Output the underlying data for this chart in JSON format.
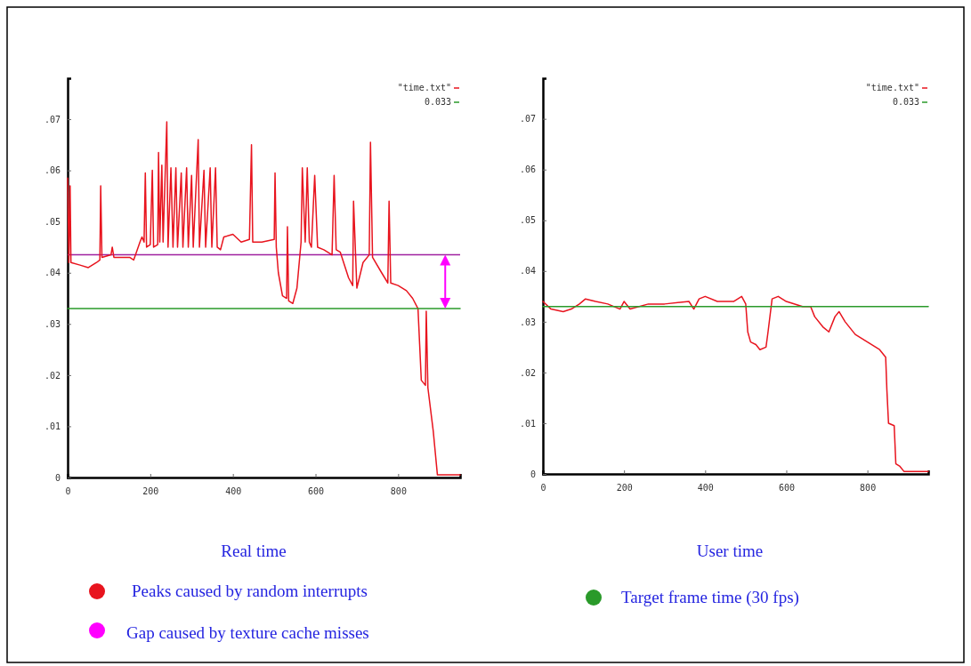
{
  "chart_data": [
    {
      "type": "line",
      "xlabel": "Real time",
      "xlim": [
        0,
        950
      ],
      "ylim": [
        0,
        0.078
      ],
      "xticks": [
        0,
        200,
        400,
        600,
        800
      ],
      "yticks": [
        {
          "value": 0,
          "label": "0"
        },
        {
          "value": 0.01,
          "label": ".01"
        },
        {
          "value": 0.02,
          "label": ".02"
        },
        {
          "value": 0.03,
          "label": ".03"
        },
        {
          "value": 0.04,
          "label": ".04"
        },
        {
          "value": 0.05,
          "label": ".05"
        },
        {
          "value": 0.06,
          "label": ".06"
        },
        {
          "value": 0.07,
          "label": ".07"
        }
      ],
      "legend": "top right",
      "series": [
        {
          "name": "\"time.txt\"",
          "color": "#e8141e",
          "x": [
            0,
            3,
            6,
            8,
            30,
            50,
            70,
            78,
            80,
            83,
            105,
            108,
            112,
            150,
            160,
            175,
            180,
            185,
            188,
            191,
            200,
            205,
            208,
            218,
            220,
            223,
            228,
            231,
            240,
            243,
            250,
            255,
            262,
            266,
            275,
            279,
            288,
            292,
            300,
            304,
            316,
            319,
            330,
            334,
            345,
            349,
            358,
            362,
            370,
            378,
            400,
            420,
            440,
            445,
            448,
            470,
            500,
            502,
            505,
            510,
            520,
            530,
            532,
            535,
            545,
            555,
            565,
            568,
            575,
            580,
            585,
            590,
            598,
            605,
            620,
            640,
            645,
            650,
            660,
            680,
            690,
            692,
            700,
            715,
            730,
            733,
            738,
            760,
            775,
            778,
            782,
            800,
            820,
            835,
            848,
            852,
            856,
            866,
            868,
            872,
            885,
            895,
            950
          ],
          "values": [
            0.0585,
            0.042,
            0.057,
            0.042,
            0.0415,
            0.041,
            0.042,
            0.0425,
            0.057,
            0.043,
            0.0435,
            0.045,
            0.043,
            0.043,
            0.0425,
            0.046,
            0.047,
            0.046,
            0.0595,
            0.045,
            0.0455,
            0.06,
            0.045,
            0.0455,
            0.0635,
            0.046,
            0.061,
            0.046,
            0.0695,
            0.045,
            0.0605,
            0.045,
            0.0605,
            0.045,
            0.0595,
            0.045,
            0.0605,
            0.045,
            0.059,
            0.045,
            0.066,
            0.045,
            0.06,
            0.045,
            0.0605,
            0.045,
            0.0605,
            0.045,
            0.0445,
            0.047,
            0.0475,
            0.046,
            0.0465,
            0.065,
            0.046,
            0.046,
            0.0465,
            0.0595,
            0.045,
            0.04,
            0.0355,
            0.035,
            0.049,
            0.0345,
            0.034,
            0.037,
            0.046,
            0.0605,
            0.046,
            0.0605,
            0.046,
            0.045,
            0.059,
            0.045,
            0.0445,
            0.0435,
            0.059,
            0.0445,
            0.044,
            0.039,
            0.0375,
            0.054,
            0.037,
            0.042,
            0.0435,
            0.0655,
            0.043,
            0.04,
            0.038,
            0.054,
            0.038,
            0.0375,
            0.0365,
            0.035,
            0.033,
            0.026,
            0.019,
            0.018,
            0.0325,
            0.0175,
            0.009,
            0.0005,
            0.0005
          ]
        },
        {
          "name": "0.033",
          "color": "#2a9a2a",
          "x": [
            0,
            950
          ],
          "values": [
            0.033,
            0.033
          ]
        }
      ],
      "ref_lines": [
        {
          "axis": "y",
          "value": 0.0435,
          "color": "#a020a0"
        }
      ],
      "annotations": [
        "Peaks caused by random interrupts",
        "Gap caused by texture cache misses"
      ]
    },
    {
      "type": "line",
      "xlabel": "User time",
      "xlim": [
        0,
        950
      ],
      "ylim": [
        0,
        0.078
      ],
      "xticks": [
        0,
        200,
        400,
        600,
        800
      ],
      "yticks": [
        {
          "value": 0,
          "label": "0"
        },
        {
          "value": 0.01,
          "label": ".01"
        },
        {
          "value": 0.02,
          "label": ".02"
        },
        {
          "value": 0.03,
          "label": ".03"
        },
        {
          "value": 0.04,
          "label": ".04"
        },
        {
          "value": 0.05,
          "label": ".05"
        },
        {
          "value": 0.06,
          "label": ".06"
        },
        {
          "value": 0.07,
          "label": ".07"
        }
      ],
      "legend": "top right",
      "series": [
        {
          "name": "\"time.txt\"",
          "color": "#e8141e",
          "x": [
            0,
            20,
            50,
            70,
            90,
            105,
            130,
            160,
            190,
            200,
            215,
            260,
            300,
            360,
            372,
            385,
            400,
            430,
            470,
            490,
            500,
            505,
            512,
            525,
            535,
            550,
            555,
            565,
            580,
            600,
            640,
            660,
            670,
            690,
            705,
            720,
            730,
            745,
            770,
            800,
            830,
            845,
            848,
            852,
            866,
            870,
            880,
            890,
            950
          ],
          "values": [
            0.034,
            0.0325,
            0.032,
            0.0325,
            0.0335,
            0.0345,
            0.034,
            0.0335,
            0.0325,
            0.034,
            0.0325,
            0.0335,
            0.0335,
            0.034,
            0.0325,
            0.0345,
            0.035,
            0.034,
            0.034,
            0.035,
            0.0335,
            0.028,
            0.026,
            0.0255,
            0.0245,
            0.025,
            0.028,
            0.0345,
            0.035,
            0.034,
            0.033,
            0.033,
            0.031,
            0.029,
            0.028,
            0.031,
            0.032,
            0.03,
            0.0275,
            0.026,
            0.0245,
            0.023,
            0.0165,
            0.01,
            0.0095,
            0.002,
            0.0015,
            0.0005,
            0.0005
          ]
        },
        {
          "name": "0.033",
          "color": "#2a9a2a",
          "x": [
            0,
            950
          ],
          "values": [
            0.033,
            0.033
          ]
        }
      ],
      "annotations": [
        "Target frame time (30 fps)"
      ]
    }
  ]
}
